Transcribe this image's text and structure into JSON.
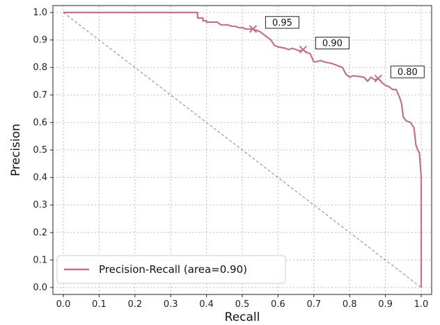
{
  "chart_data": {
    "type": "line",
    "xlabel": "Recall",
    "ylabel": "Precision",
    "xlim": [
      0.0,
      1.0
    ],
    "ylim": [
      0.0,
      1.0
    ],
    "xticks": [
      "0.0",
      "0.1",
      "0.2",
      "0.3",
      "0.4",
      "0.5",
      "0.6",
      "0.7",
      "0.8",
      "0.9",
      "1.0"
    ],
    "yticks": [
      "0.0",
      "0.1",
      "0.2",
      "0.3",
      "0.4",
      "0.5",
      "0.6",
      "0.7",
      "0.8",
      "0.9",
      "1.0"
    ],
    "grid": true,
    "legend_position": "lower-left",
    "colors": {
      "curve": "#c0728a",
      "baseline": "#999999",
      "grid": "#bbbbbb"
    },
    "series": [
      {
        "name": "Precision-Recall (area=0.90)",
        "style": "solid",
        "x": [
          0.0,
          0.375,
          0.375,
          0.39,
          0.39,
          0.4,
          0.4,
          0.43,
          0.44,
          0.46,
          0.47,
          0.48,
          0.49,
          0.5,
          0.51,
          0.53,
          0.54,
          0.55,
          0.56,
          0.57,
          0.58,
          0.59,
          0.6,
          0.62,
          0.63,
          0.64,
          0.66,
          0.67,
          0.68,
          0.69,
          0.7,
          0.72,
          0.73,
          0.75,
          0.78,
          0.79,
          0.8,
          0.81,
          0.84,
          0.85,
          0.86,
          0.87,
          0.88,
          0.89,
          0.9,
          0.91,
          0.92,
          0.93,
          0.94,
          0.945,
          0.95,
          0.955,
          0.96,
          0.97,
          0.98,
          0.985,
          0.99,
          0.995,
          1.0,
          1.0
        ],
        "y": [
          1.0,
          1.0,
          0.98,
          0.98,
          0.97,
          0.97,
          0.965,
          0.965,
          0.955,
          0.955,
          0.95,
          0.95,
          0.945,
          0.945,
          0.94,
          0.94,
          0.935,
          0.93,
          0.92,
          0.91,
          0.9,
          0.88,
          0.875,
          0.87,
          0.865,
          0.87,
          0.86,
          0.865,
          0.855,
          0.85,
          0.82,
          0.825,
          0.82,
          0.815,
          0.8,
          0.775,
          0.765,
          0.77,
          0.765,
          0.75,
          0.765,
          0.755,
          0.76,
          0.745,
          0.735,
          0.73,
          0.72,
          0.72,
          0.69,
          0.67,
          0.62,
          0.61,
          0.605,
          0.6,
          0.58,
          0.52,
          0.5,
          0.49,
          0.4,
          0.0
        ]
      },
      {
        "name": "",
        "style": "dashed",
        "x": [
          0.0,
          1.0
        ],
        "y": [
          1.0,
          0.0
        ]
      }
    ],
    "markers": [
      {
        "x": 0.53,
        "y": 0.94,
        "label": "0.95"
      },
      {
        "x": 0.67,
        "y": 0.865,
        "label": "0.90"
      },
      {
        "x": 0.88,
        "y": 0.76,
        "label": "0.80"
      }
    ]
  }
}
